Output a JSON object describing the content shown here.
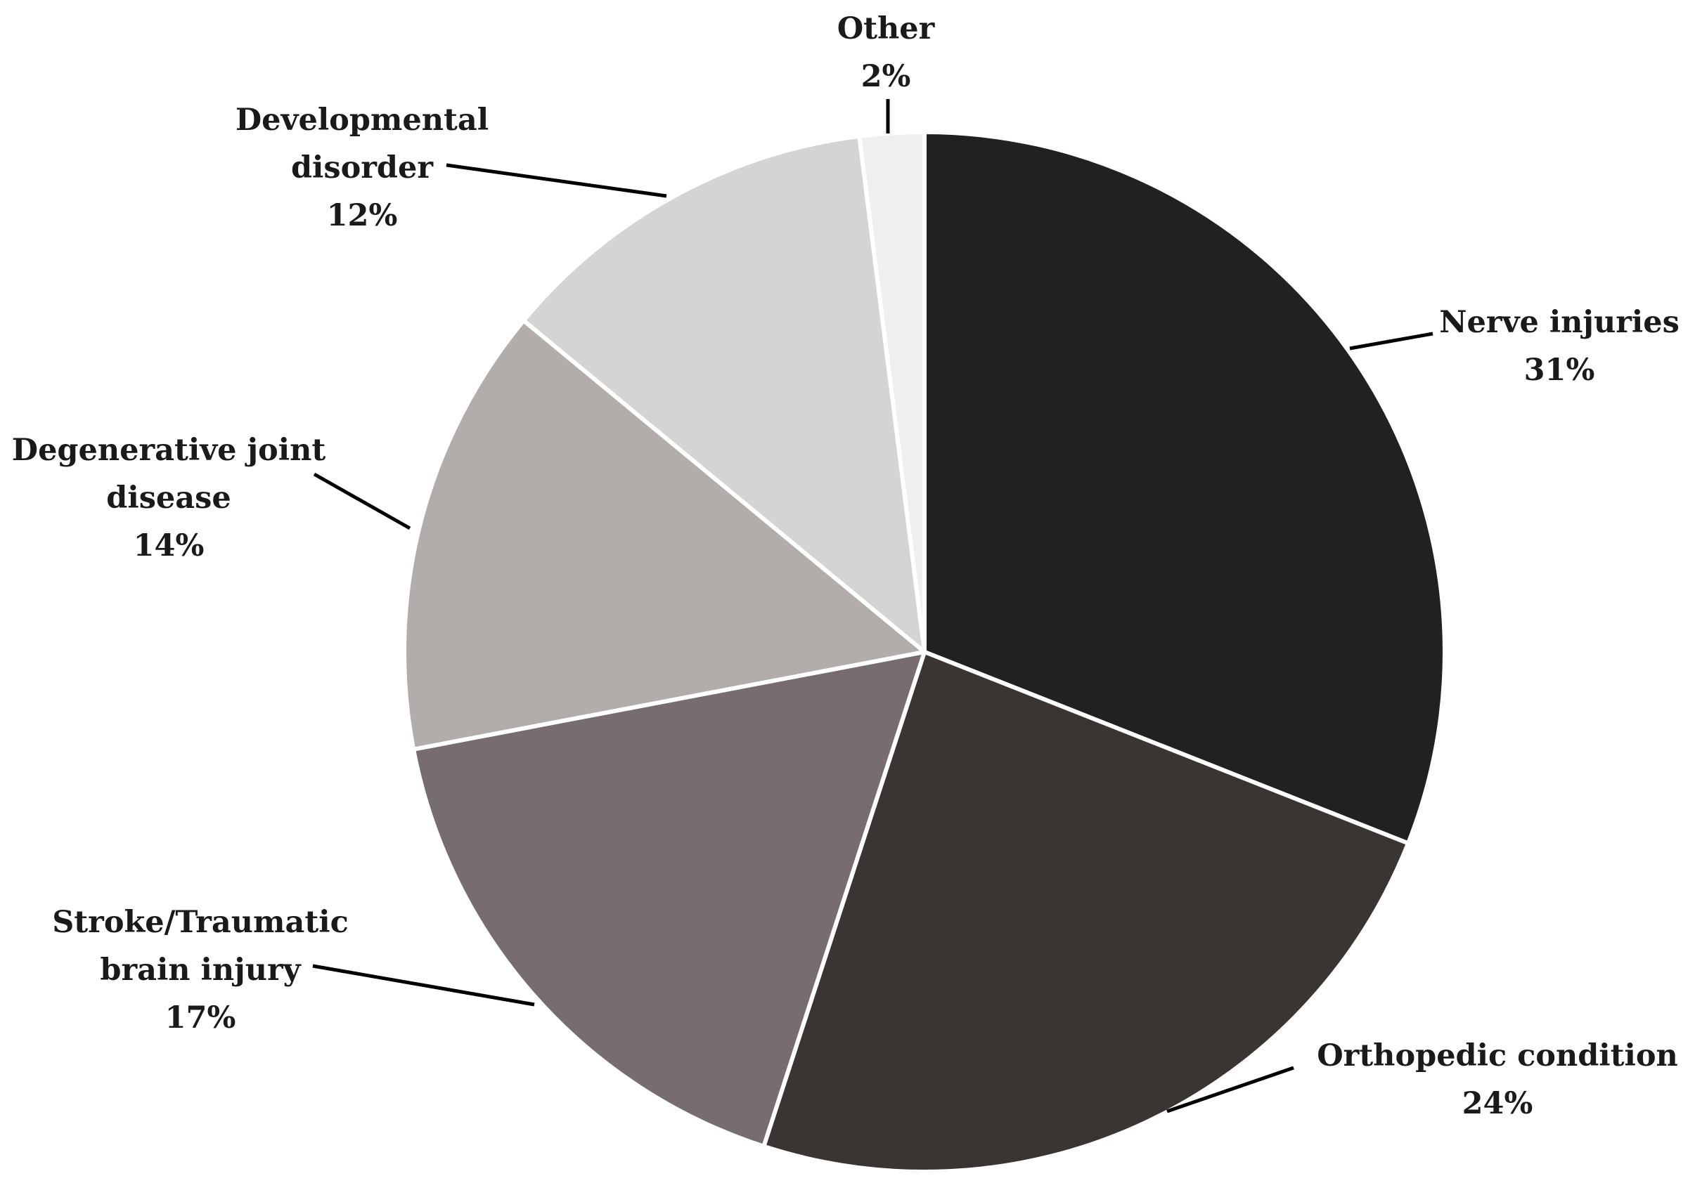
{
  "chart_data": {
    "type": "pie",
    "start_angle_deg": 0,
    "direction": "clockwise",
    "slices": [
      {
        "label_lines": [
          "Nerve injuries"
        ],
        "value": 31,
        "value_label": "31%",
        "color": "#222020"
      },
      {
        "label_lines": [
          "Orthopedic condition"
        ],
        "value": 24,
        "value_label": "24%",
        "color": "#3a3432"
      },
      {
        "label_lines": [
          "Stroke/Traumatic",
          "brain injury"
        ],
        "value": 17,
        "value_label": "17%",
        "color": "#776d6e"
      },
      {
        "label_lines": [
          "Degenerative joint",
          "disease"
        ],
        "value": 14,
        "value_label": "14%",
        "color": "#b2acaa"
      },
      {
        "label_lines": [
          "Developmental",
          "disorder"
        ],
        "value": 12,
        "value_label": "12%",
        "color": "#d6d3d3"
      },
      {
        "label_lines": [
          "Other"
        ],
        "value": 2,
        "value_label": "2%",
        "color": "#efefef"
      }
    ]
  }
}
